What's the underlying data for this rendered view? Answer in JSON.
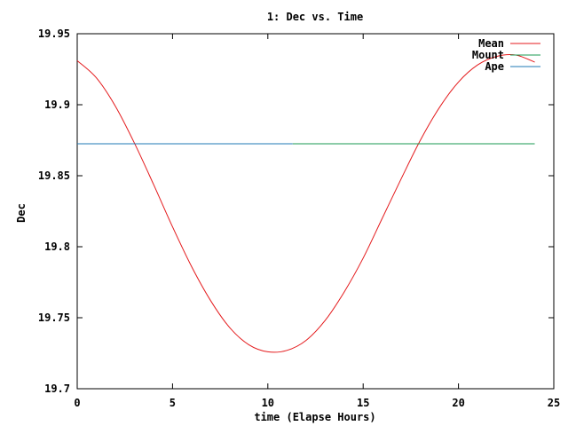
{
  "chart_data": {
    "type": "line",
    "title": "1: Dec vs. Time",
    "xlabel": "time (Elapse Hours)",
    "ylabel": "Dec",
    "xlim": [
      0,
      25
    ],
    "ylim": [
      19.7,
      19.95
    ],
    "x_ticks": [
      "0",
      "5",
      "10",
      "15",
      "20",
      "25"
    ],
    "y_ticks": [
      "19.95",
      "19.9",
      "19.85",
      "19.8",
      "19.75",
      "19.7"
    ],
    "grid": false,
    "legend_position": "top-right",
    "series": [
      {
        "name": "Mean",
        "color": "#e41a1c",
        "x": [
          0,
          1,
          2,
          3,
          4,
          5,
          6,
          7,
          8,
          9,
          10,
          11,
          12,
          13,
          14,
          15,
          16,
          17,
          18,
          19,
          20,
          21,
          22,
          23,
          24
        ],
        "y": [
          19.931,
          19.919,
          19.899,
          19.873,
          19.844,
          19.814,
          19.786,
          19.762,
          19.743,
          19.731,
          19.726,
          19.727,
          19.734,
          19.748,
          19.768,
          19.792,
          19.82,
          19.848,
          19.875,
          19.898,
          19.916,
          19.928,
          19.934,
          19.935,
          19.93
        ]
      },
      {
        "name": "Mount",
        "color": "#1a9850",
        "x": [
          11.3,
          24
        ],
        "y": [
          19.8725,
          19.8725
        ]
      },
      {
        "name": "Ape",
        "color": "#1f78b4",
        "x": [
          0,
          11.3
        ],
        "y": [
          19.8725,
          19.8725
        ]
      }
    ]
  }
}
